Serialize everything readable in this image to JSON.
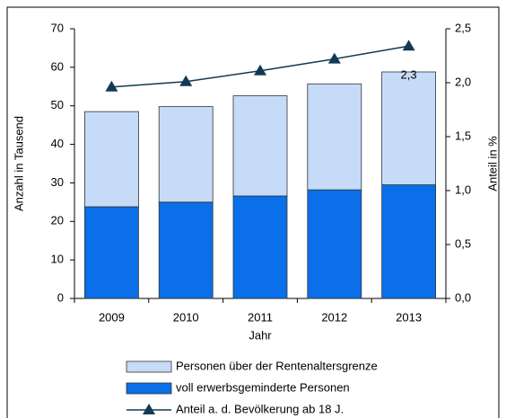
{
  "chart_data": {
    "type": "bar",
    "stacked": true,
    "x_label": "Jahr",
    "y_label": "Anzahl in Tausend",
    "y2_label": "Anteil in %",
    "categories": [
      "2009",
      "2010",
      "2011",
      "2012",
      "2013"
    ],
    "series": [
      {
        "name": "Personen über der Rentenaltersgrenze",
        "type": "bar",
        "color": "#c6dbf7",
        "values": [
          24.7,
          24.8,
          26.0,
          27.5,
          29.3
        ]
      },
      {
        "name": "voll erwerbsgeminderte Personen",
        "type": "bar",
        "color": "#0a6fe8",
        "values": [
          23.8,
          25.0,
          26.6,
          28.2,
          29.5
        ]
      },
      {
        "name": "Anteil a. d. Bevölkerung ab 18 J.",
        "type": "line",
        "axis": "y2",
        "color": "#123a52",
        "values": [
          1.96,
          2.01,
          2.11,
          2.22,
          2.34
        ],
        "value_labels": [
          null,
          null,
          null,
          null,
          "2,3"
        ]
      }
    ],
    "ylim": [
      0,
      70
    ],
    "yticks": [
      0,
      10,
      20,
      30,
      40,
      50,
      60,
      70
    ],
    "y2lim": [
      0,
      2.5
    ],
    "y2ticks": [
      {
        "value": 0,
        "label": "0,0"
      },
      {
        "value": 0.5,
        "label": "0,5"
      },
      {
        "value": 1,
        "label": "1,0"
      },
      {
        "value": 1.5,
        "label": "1,5"
      },
      {
        "value": 2,
        "label": "2,0"
      },
      {
        "value": 2.5,
        "label": "2,5"
      }
    ],
    "legend": "bottom"
  }
}
